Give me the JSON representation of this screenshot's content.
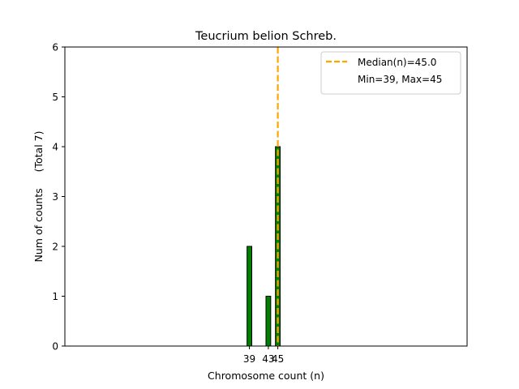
{
  "chart_data": {
    "type": "bar",
    "title": "Teucrium belion Schreb.",
    "xlabel": "Chromosome count (n)",
    "ylabel": "Num of counts     (Total 7)",
    "x": [
      39,
      43,
      45
    ],
    "x_tick_labels": [
      "39",
      "43",
      "45"
    ],
    "values": [
      2,
      1,
      4
    ],
    "xlim": [
      0,
      85
    ],
    "ylim": [
      0,
      6
    ],
    "y_ticks": [
      0,
      1,
      2,
      3,
      4,
      5,
      6
    ],
    "bar_color": "#008000",
    "bar_edge_color": "#000000",
    "median": 45.0,
    "median_color": "#ffa500",
    "legend": {
      "position": "top-right",
      "entries": [
        "Median(n)=45.0",
        "Min=39, Max=45"
      ]
    }
  }
}
